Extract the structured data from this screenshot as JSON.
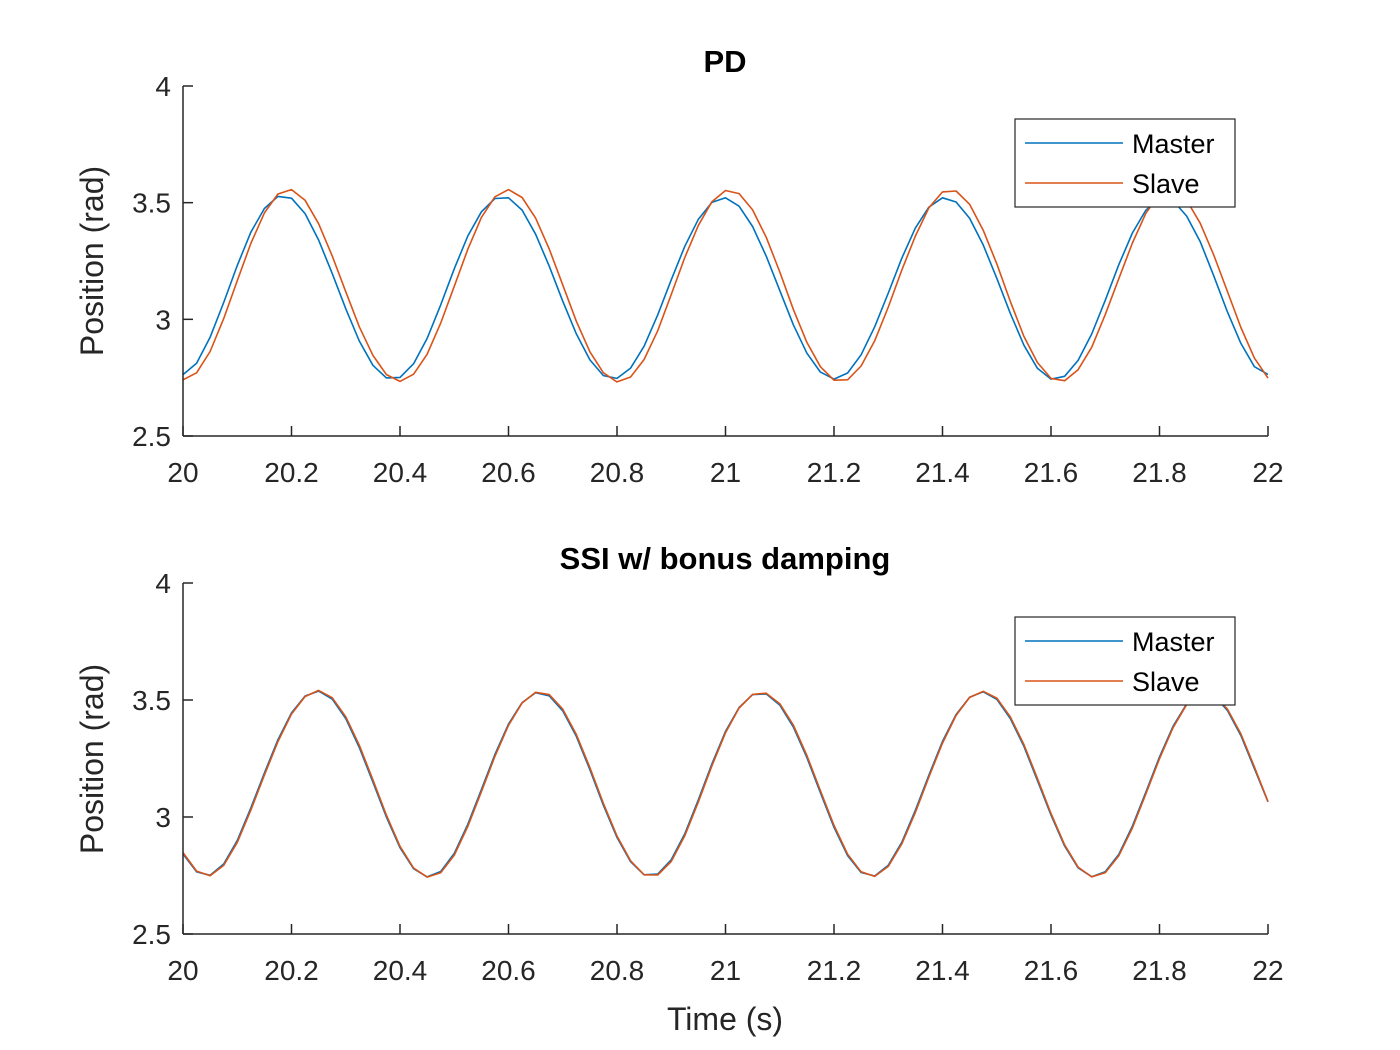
{
  "chart_data": [
    {
      "type": "line",
      "title": "PD",
      "xlabel": "",
      "ylabel": "Position (rad)",
      "xlim": [
        20,
        22
      ],
      "ylim": [
        2.5,
        4
      ],
      "xticks": [
        "20",
        "20.2",
        "20.4",
        "20.6",
        "20.8",
        "21",
        "21.2",
        "21.4",
        "21.6",
        "21.8",
        "22"
      ],
      "yticks": [
        "2.5",
        "3",
        "3.5",
        "4"
      ],
      "grid": false,
      "legend_position": "top-right",
      "series": [
        {
          "name": "Master",
          "color": "#0072BD",
          "x": [
            20.0,
            20.025,
            20.05,
            20.075,
            20.1,
            20.125,
            20.15,
            20.175,
            20.2,
            20.225,
            20.25,
            20.275,
            20.3,
            20.325,
            20.35,
            20.375,
            20.4,
            20.425,
            20.45,
            20.475,
            20.5,
            20.525,
            20.55,
            20.575,
            20.6,
            20.625,
            20.65,
            20.675,
            20.7,
            20.725,
            20.75,
            20.775,
            20.8,
            20.825,
            20.85,
            20.875,
            20.9,
            20.925,
            20.95,
            20.975,
            21.0,
            21.025,
            21.05,
            21.075,
            21.1,
            21.125,
            21.15,
            21.175,
            21.2,
            21.225,
            21.25,
            21.275,
            21.3,
            21.325,
            21.35,
            21.375,
            21.4,
            21.425,
            21.45,
            21.475,
            21.5,
            21.525,
            21.55,
            21.575,
            21.6,
            21.625,
            21.65,
            21.675,
            21.7,
            21.725,
            21.75,
            21.775,
            21.8,
            21.825,
            21.85,
            21.875,
            21.9,
            21.925,
            21.95,
            21.975,
            22.0
          ],
          "y": [
            2.763,
            2.812,
            2.923,
            3.072,
            3.231,
            3.373,
            3.475,
            3.527,
            3.519,
            3.453,
            3.34,
            3.197,
            3.045,
            2.907,
            2.803,
            2.749,
            2.751,
            2.81,
            2.918,
            3.062,
            3.217,
            3.357,
            3.461,
            3.518,
            3.521,
            3.468,
            3.365,
            3.228,
            3.078,
            2.938,
            2.826,
            2.759,
            2.747,
            2.791,
            2.885,
            3.019,
            3.169,
            3.313,
            3.429,
            3.501,
            3.521,
            3.485,
            3.398,
            3.271,
            3.123,
            2.977,
            2.855,
            2.774,
            2.744,
            2.77,
            2.848,
            2.968,
            3.113,
            3.262,
            3.392,
            3.481,
            3.521,
            3.503,
            3.433,
            3.319,
            3.176,
            3.026,
            2.889,
            2.79,
            2.744,
            2.756,
            2.824,
            2.937,
            3.081,
            3.234,
            3.37,
            3.468,
            3.517,
            3.509,
            3.443,
            3.333,
            3.187,
            3.033,
            2.897,
            2.797,
            2.764
          ]
        },
        {
          "name": "Slave",
          "color": "#D95319",
          "x": [
            20.0,
            20.025,
            20.05,
            20.075,
            20.1,
            20.125,
            20.15,
            20.175,
            20.2,
            20.225,
            20.25,
            20.275,
            20.3,
            20.325,
            20.35,
            20.375,
            20.4,
            20.425,
            20.45,
            20.475,
            20.5,
            20.525,
            20.55,
            20.575,
            20.6,
            20.625,
            20.65,
            20.675,
            20.7,
            20.725,
            20.75,
            20.775,
            20.8,
            20.825,
            20.85,
            20.875,
            20.9,
            20.925,
            20.95,
            20.975,
            21.0,
            21.025,
            21.05,
            21.075,
            21.1,
            21.125,
            21.15,
            21.175,
            21.2,
            21.225,
            21.25,
            21.275,
            21.3,
            21.325,
            21.35,
            21.375,
            21.4,
            21.425,
            21.45,
            21.475,
            21.5,
            21.525,
            21.55,
            21.575,
            21.6,
            21.625,
            21.65,
            21.675,
            21.7,
            21.725,
            21.75,
            21.775,
            21.8,
            21.825,
            21.85,
            21.875,
            21.9,
            21.925,
            21.95,
            21.975,
            22.0
          ],
          "y": [
            2.741,
            2.771,
            2.862,
            3.003,
            3.166,
            3.325,
            3.456,
            3.537,
            3.556,
            3.51,
            3.41,
            3.272,
            3.118,
            2.968,
            2.846,
            2.763,
            2.734,
            2.765,
            2.85,
            2.984,
            3.142,
            3.3,
            3.437,
            3.525,
            3.556,
            3.522,
            3.434,
            3.302,
            3.148,
            2.992,
            2.861,
            2.771,
            2.732,
            2.753,
            2.828,
            2.951,
            3.106,
            3.265,
            3.403,
            3.504,
            3.552,
            3.539,
            3.469,
            3.352,
            3.203,
            3.043,
            2.901,
            2.797,
            2.739,
            2.741,
            2.8,
            2.908,
            3.053,
            3.211,
            3.357,
            3.478,
            3.546,
            3.55,
            3.493,
            3.382,
            3.238,
            3.077,
            2.927,
            2.815,
            2.747,
            2.737,
            2.784,
            2.88,
            3.02,
            3.174,
            3.327,
            3.455,
            3.537,
            3.556,
            3.511,
            3.412,
            3.276,
            3.121,
            2.965,
            2.834,
            2.748
          ]
        }
      ]
    },
    {
      "type": "line",
      "title": "SSI w/ bonus damping",
      "xlabel": "Time (s)",
      "ylabel": "Position (rad)",
      "xlim": [
        20,
        22
      ],
      "ylim": [
        2.5,
        4
      ],
      "xticks": [
        "20",
        "20.2",
        "20.4",
        "20.6",
        "20.8",
        "21",
        "21.2",
        "21.4",
        "21.6",
        "21.8",
        "22"
      ],
      "yticks": [
        "2.5",
        "3",
        "3.5",
        "4"
      ],
      "grid": false,
      "legend_position": "top-right",
      "series": [
        {
          "name": "Master",
          "color": "#0072BD",
          "x": [
            20.0,
            20.025,
            20.05,
            20.075,
            20.1,
            20.125,
            20.15,
            20.175,
            20.2,
            20.225,
            20.25,
            20.275,
            20.3,
            20.325,
            20.35,
            20.375,
            20.4,
            20.425,
            20.45,
            20.475,
            20.5,
            20.525,
            20.55,
            20.575,
            20.6,
            20.625,
            20.65,
            20.675,
            20.7,
            20.725,
            20.75,
            20.775,
            20.8,
            20.825,
            20.85,
            20.875,
            20.9,
            20.925,
            20.95,
            20.975,
            21.0,
            21.025,
            21.05,
            21.075,
            21.1,
            21.125,
            21.15,
            21.175,
            21.2,
            21.225,
            21.25,
            21.275,
            21.3,
            21.325,
            21.35,
            21.375,
            21.4,
            21.425,
            21.45,
            21.475,
            21.5,
            21.525,
            21.55,
            21.575,
            21.6,
            21.625,
            21.65,
            21.675,
            21.7,
            21.725,
            21.75,
            21.775,
            21.8,
            21.825,
            21.85,
            21.875,
            21.9,
            21.925,
            21.95,
            21.975,
            22.0
          ],
          "y": [
            2.842,
            2.766,
            2.751,
            2.799,
            2.9,
            3.038,
            3.188,
            3.33,
            3.445,
            3.517,
            3.538,
            3.504,
            3.42,
            3.297,
            3.149,
            3.0,
            2.869,
            2.779,
            2.744,
            2.767,
            2.845,
            2.969,
            3.117,
            3.267,
            3.397,
            3.489,
            3.531,
            3.518,
            3.454,
            3.345,
            3.202,
            3.05,
            2.913,
            2.809,
            2.753,
            2.756,
            2.817,
            2.928,
            3.074,
            3.227,
            3.366,
            3.468,
            3.523,
            3.526,
            3.478,
            3.385,
            3.254,
            3.104,
            2.956,
            2.835,
            2.763,
            2.748,
            2.794,
            2.892,
            3.029,
            3.179,
            3.323,
            3.438,
            3.512,
            3.535,
            3.503,
            3.421,
            3.302,
            3.156,
            3.008,
            2.876,
            2.783,
            2.745,
            2.766,
            2.84,
            2.961,
            3.107,
            3.257,
            3.388,
            3.483,
            3.529,
            3.52,
            3.456,
            3.348,
            3.207,
            3.065
          ]
        },
        {
          "name": "Slave",
          "color": "#D95319",
          "x": [
            20.0,
            20.025,
            20.05,
            20.075,
            20.1,
            20.125,
            20.15,
            20.175,
            20.2,
            20.225,
            20.25,
            20.275,
            20.3,
            20.325,
            20.35,
            20.375,
            20.4,
            20.425,
            20.45,
            20.475,
            20.5,
            20.525,
            20.55,
            20.575,
            20.6,
            20.625,
            20.65,
            20.675,
            20.7,
            20.725,
            20.75,
            20.775,
            20.8,
            20.825,
            20.85,
            20.875,
            20.9,
            20.925,
            20.95,
            20.975,
            21.0,
            21.025,
            21.05,
            21.075,
            21.1,
            21.125,
            21.15,
            21.175,
            21.2,
            21.225,
            21.25,
            21.275,
            21.3,
            21.325,
            21.35,
            21.375,
            21.4,
            21.425,
            21.45,
            21.475,
            21.5,
            21.525,
            21.55,
            21.575,
            21.6,
            21.625,
            21.65,
            21.675,
            21.7,
            21.725,
            21.75,
            21.775,
            21.8,
            21.825,
            21.85,
            21.875,
            21.9,
            21.925,
            21.95,
            21.975,
            22.0
          ],
          "y": [
            2.848,
            2.769,
            2.749,
            2.793,
            2.892,
            3.029,
            3.179,
            3.322,
            3.44,
            3.515,
            3.541,
            3.51,
            3.428,
            3.307,
            3.159,
            3.008,
            2.875,
            2.782,
            2.743,
            2.762,
            2.837,
            2.96,
            3.108,
            3.259,
            3.392,
            3.487,
            3.533,
            3.523,
            3.461,
            3.353,
            3.211,
            3.058,
            2.919,
            2.813,
            2.753,
            2.752,
            2.81,
            2.92,
            3.065,
            3.219,
            3.36,
            3.466,
            3.524,
            3.529,
            3.484,
            3.393,
            3.263,
            3.113,
            2.964,
            2.841,
            2.766,
            2.746,
            2.789,
            2.885,
            3.02,
            3.171,
            3.316,
            3.434,
            3.511,
            3.537,
            3.508,
            3.428,
            3.31,
            3.165,
            3.015,
            2.881,
            2.786,
            2.744,
            2.762,
            2.834,
            2.953,
            3.099,
            3.249,
            3.382,
            3.48,
            3.53,
            3.523,
            3.462,
            3.355,
            3.214,
            3.066
          ]
        }
      ]
    }
  ]
}
